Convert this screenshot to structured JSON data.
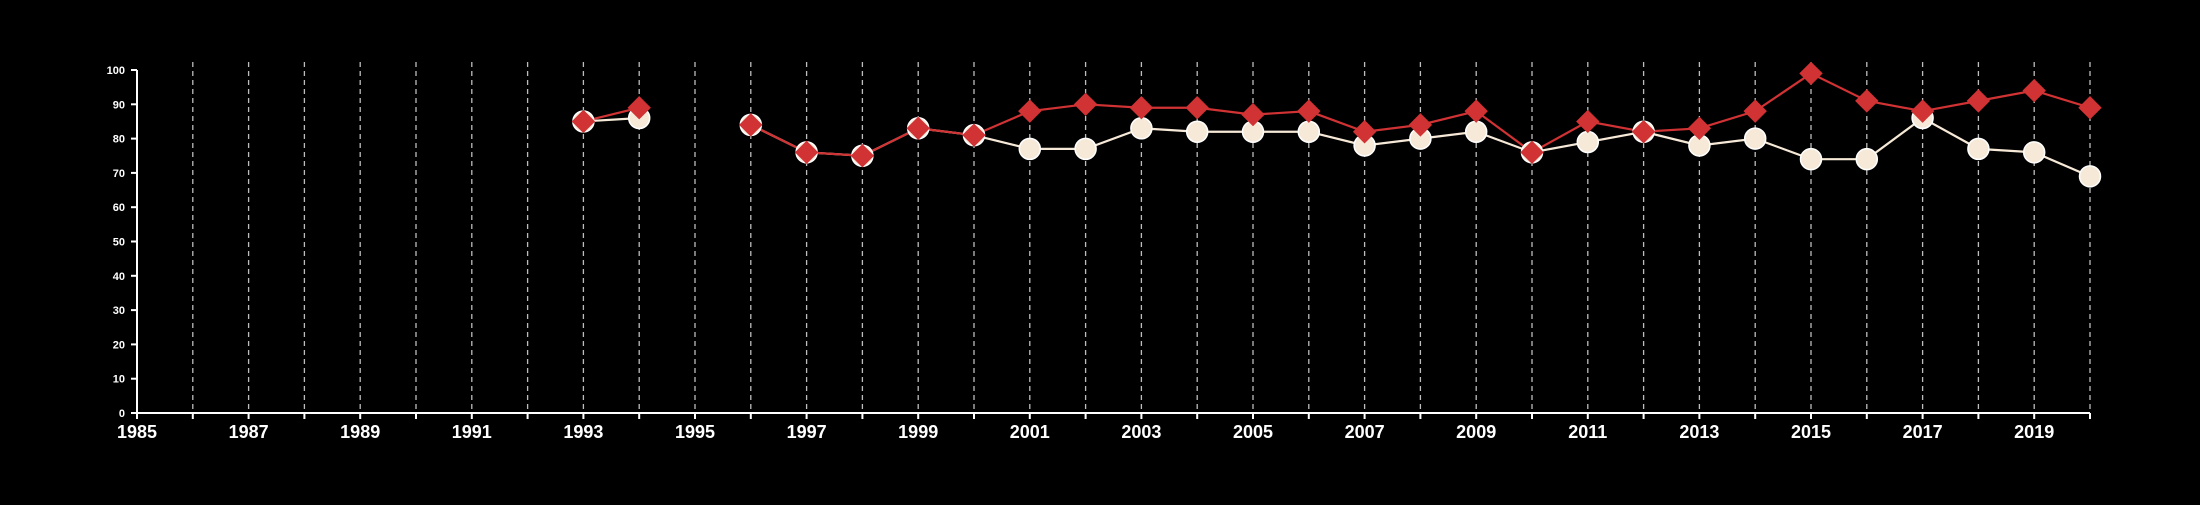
{
  "chart_data": {
    "type": "line",
    "title": "",
    "xlabel": "",
    "ylabel": "",
    "xlim": [
      1985,
      2020
    ],
    "ylim": [
      0,
      100
    ],
    "x_ticks": [
      1985,
      1987,
      1989,
      1991,
      1993,
      1995,
      1997,
      1999,
      2001,
      2003,
      2005,
      2007,
      2009,
      2011,
      2013,
      2015,
      2017,
      2019
    ],
    "y_ticks": [
      0,
      10,
      20,
      30,
      40,
      50,
      60,
      70,
      80,
      90,
      100
    ],
    "grid": "vertical dashed lines every year",
    "legend": "none",
    "series": [
      {
        "color": "#f7e9d7",
        "marker": "circle",
        "x": [
          1993,
          1994,
          1996,
          1997,
          1998,
          1999,
          2000,
          2001,
          2002,
          2003,
          2004,
          2005,
          2006,
          2007,
          2008,
          2009,
          2010,
          2011,
          2012,
          2013,
          2014,
          2015,
          2016,
          2017,
          2018,
          2019,
          2020
        ],
        "values": [
          85,
          86,
          84,
          76,
          75,
          83,
          81,
          77,
          77,
          83,
          82,
          82,
          82,
          78,
          80,
          82,
          76,
          79,
          82,
          78,
          80,
          74,
          74,
          86,
          77,
          76,
          69
        ]
      },
      {
        "color": "#d13234",
        "marker": "diamond",
        "x": [
          1993,
          1994,
          1996,
          1997,
          1998,
          1999,
          2000,
          2001,
          2002,
          2003,
          2004,
          2005,
          2006,
          2007,
          2008,
          2009,
          2010,
          2011,
          2012,
          2013,
          2014,
          2015,
          2016,
          2017,
          2018,
          2019,
          2020
        ],
        "values": [
          85,
          89,
          84,
          76,
          75,
          83,
          81,
          88,
          90,
          89,
          89,
          87,
          88,
          82,
          84,
          88,
          76,
          85,
          82,
          83,
          88,
          99,
          91,
          88,
          91,
          94,
          89
        ]
      }
    ]
  }
}
